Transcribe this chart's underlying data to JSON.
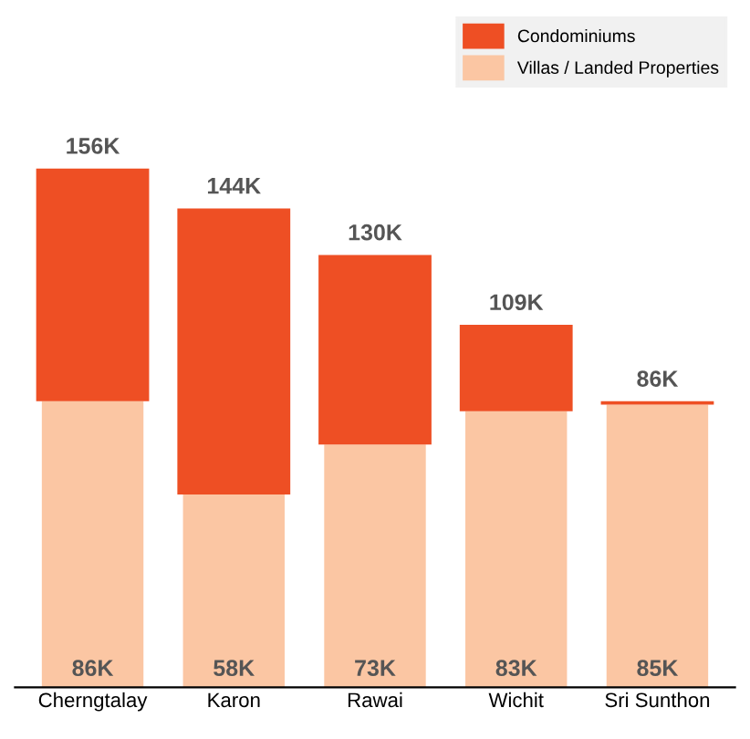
{
  "chart_data": {
    "type": "bar",
    "stacked": true,
    "categories": [
      "Cherngtalay",
      "Karon",
      "Rawai",
      "Wichit",
      "Sri Sunthon"
    ],
    "series": [
      {
        "name": "Villas / Landed Properties",
        "color": "#fbc6a3",
        "values": [
          86,
          58,
          73,
          83,
          85
        ],
        "value_labels": [
          "86K",
          "58K",
          "73K",
          "83K",
          "85K"
        ]
      },
      {
        "name": "Condominiums",
        "color": "#ee4f24",
        "values": [
          70,
          86,
          57,
          26,
          1
        ]
      }
    ],
    "totals": [
      "156K",
      "144K",
      "130K",
      "109K",
      "86K"
    ],
    "ylim": [
      0,
      200
    ],
    "tick_labels": "x",
    "legend": "top right",
    "grid": false
  }
}
